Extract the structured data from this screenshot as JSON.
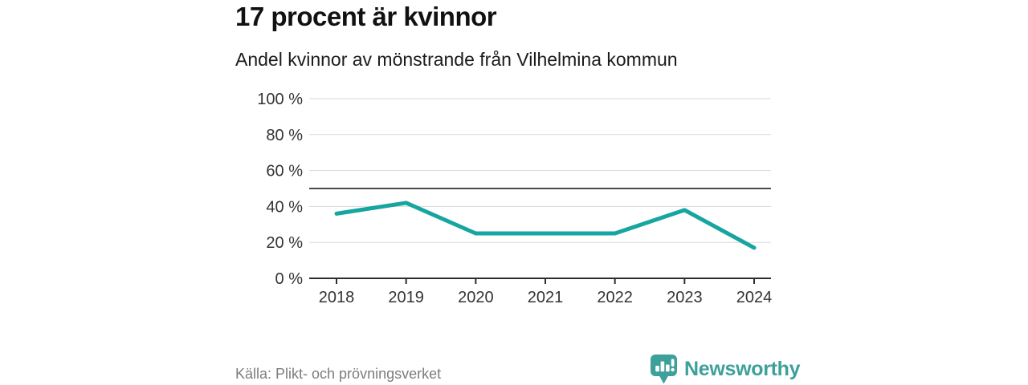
{
  "header": {
    "title": "17 procent är kvinnor",
    "subtitle": "Andel kvinnor av mönstrande från Vilhelmina kommun"
  },
  "chart_data": {
    "type": "line",
    "title": "17 procent är kvinnor",
    "subtitle": "Andel kvinnor av mönstrande från Vilhelmina kommun",
    "categories": [
      "2018",
      "2019",
      "2020",
      "2021",
      "2022",
      "2023",
      "2024"
    ],
    "series": [
      {
        "name": "Andel kvinnor av mönstrande",
        "values": [
          36,
          42,
          25,
          25,
          25,
          38,
          17
        ]
      }
    ],
    "unit": "%",
    "xlabel": "",
    "ylabel": "",
    "ylim": [
      0,
      100
    ],
    "yticks": [
      0,
      20,
      40,
      60,
      80,
      100
    ],
    "ytick_suffix": " %",
    "reference_line": 50,
    "grid": true,
    "legend_position": "none",
    "colors": {
      "line": "#16a5a0",
      "grid": "#d9d9d9",
      "axis": "#2e2e2e",
      "reference": "#4a4a4a",
      "tick_text": "#333333"
    }
  },
  "footer": {
    "source": "Källa: Plikt- och prövningsverket",
    "brand": "Newsworthy",
    "brand_color": "#3da09a"
  },
  "icons": {
    "logo": "newsworthy-speech-bubble-bar-chart-icon"
  }
}
